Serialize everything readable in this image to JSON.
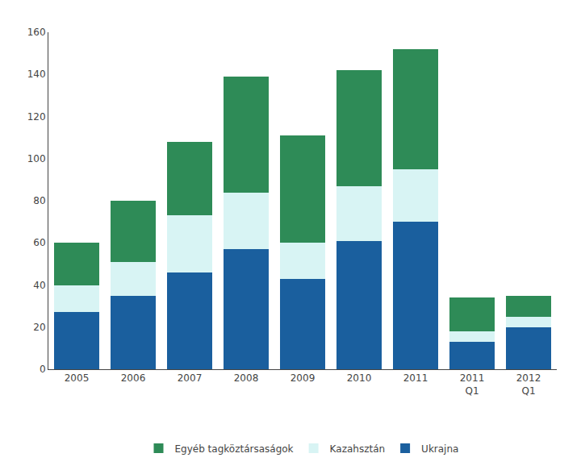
{
  "chart_data": {
    "type": "bar",
    "stacked": true,
    "categories": [
      "2005",
      "2006",
      "2007",
      "2008",
      "2009",
      "2010",
      "2011",
      "2011\nQ1",
      "2012\nQ1"
    ],
    "series": [
      {
        "name": "Ukrajna",
        "color": "#1a5f9e",
        "values": [
          27,
          35,
          46,
          57,
          43,
          61,
          70,
          13,
          20
        ]
      },
      {
        "name": "Kazahsztán",
        "color": "#d8f4f4",
        "values": [
          13,
          16,
          27,
          27,
          17,
          26,
          25,
          5,
          5
        ]
      },
      {
        "name": "Egyéb tagköztársaságok",
        "color": "#2e8b57",
        "values": [
          20,
          29,
          35,
          55,
          51,
          55,
          57,
          16,
          10
        ]
      }
    ],
    "ylim": [
      0,
      160
    ],
    "yticks": [
      0,
      20,
      40,
      60,
      80,
      100,
      120,
      140,
      160
    ],
    "grid": false,
    "legend": "bottom"
  }
}
